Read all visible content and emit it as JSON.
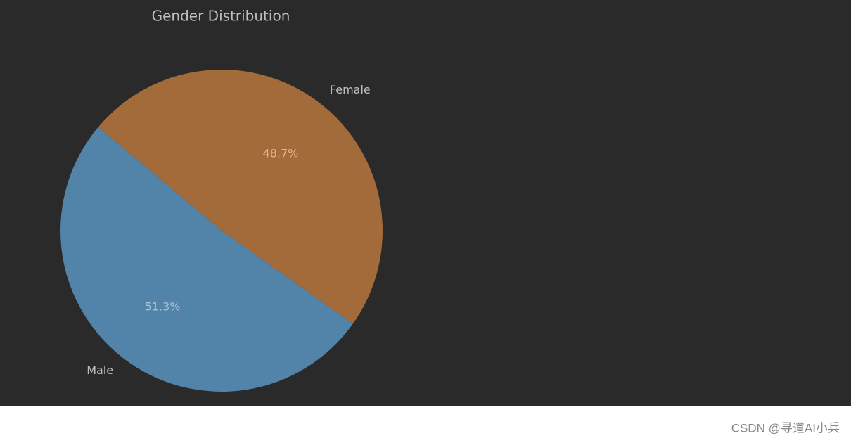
{
  "chart_data": {
    "type": "pie",
    "title": "Gender Distribution",
    "categories": [
      "Male",
      "Female"
    ],
    "values": [
      51.3,
      48.7
    ],
    "value_labels": [
      "51.3%",
      "48.7%"
    ],
    "colors": [
      "#5283a8",
      "#a36b3a"
    ]
  },
  "watermark": "CSDN @寻道AI小兵"
}
